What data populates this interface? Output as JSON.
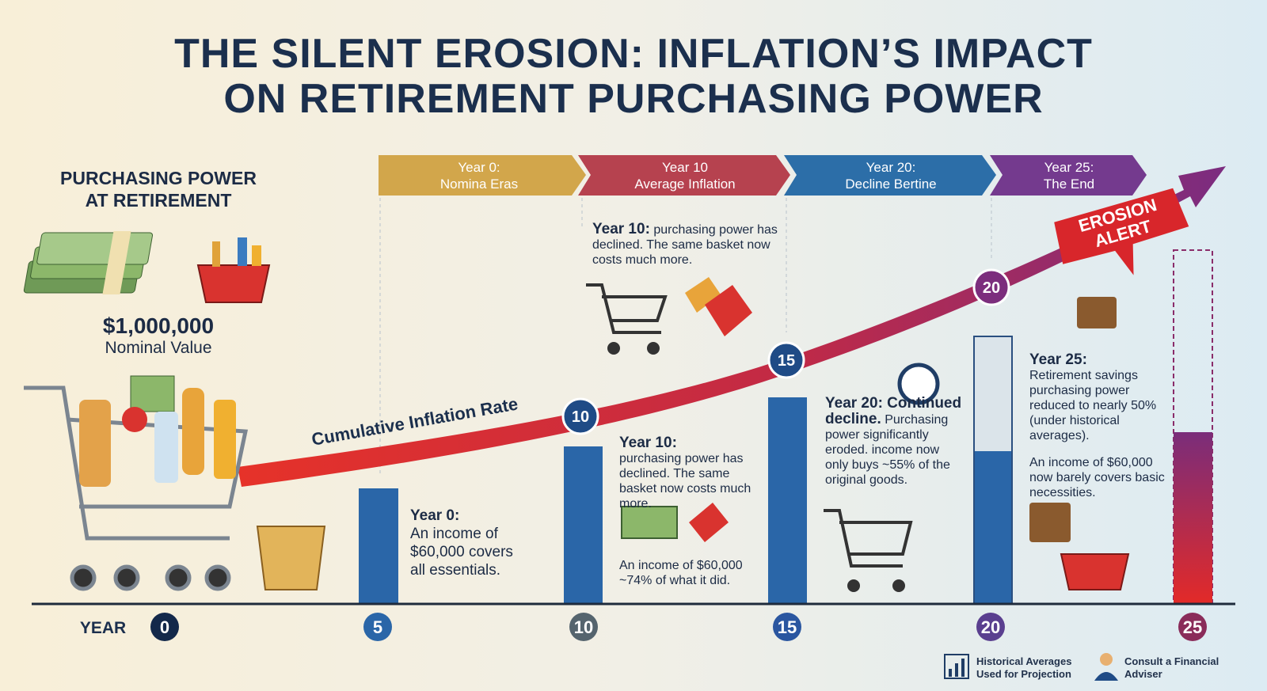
{
  "header": {
    "title_line1": "THE SILENT EROSION: INFLATION’S IMPACT",
    "title_line2": "ON RETIREMENT PURCHASING POWER"
  },
  "left_panel": {
    "heading_line1": "PURCHASING POWER",
    "heading_line2": "AT RETIREMENT",
    "amount": "$1,000,000",
    "amount_label": "Nominal Value"
  },
  "phases": [
    {
      "line1": "Year 0:",
      "line2": "Nomina Eras"
    },
    {
      "line1": "Year 10",
      "line2": "Average Inflation"
    },
    {
      "line1": "Year 20:",
      "line2": "Decline Bertine"
    },
    {
      "line1": "Year 25:",
      "line2": "The End"
    }
  ],
  "curve": {
    "label": "Cumulative Inflation Rate",
    "markers": [
      "10",
      "15",
      "20"
    ],
    "alert_line1": "EROSION",
    "alert_line2": "ALERT"
  },
  "notes": {
    "year10_top": {
      "lead": "Year 10:",
      "text": "purchasing power has declined. The same basket now costs much more."
    },
    "year0": {
      "lead": "Year 0:",
      "text": "An income of $60,000 covers all essentials."
    },
    "year10": {
      "lead": "Year 10:",
      "text": "purchasing power has declined. The same basket now costs much more.",
      "extra": "An income of $60,000 ~74% of what it did."
    },
    "year20": {
      "lead": "Year 20: Continued decline.",
      "text": "Purchasing power significantly eroded. income now only buys ~55% of the original goods."
    },
    "year25": {
      "lead": "Year 25:",
      "text": "Retirement savings purchasing power reduced to nearly 50% (under historical averages).",
      "extra": "An income of $60,000 now barely covers basic necessities."
    }
  },
  "timeline": {
    "label": "YEAR",
    "years": [
      "0",
      "5",
      "10",
      "15",
      "20",
      "25"
    ]
  },
  "footer": {
    "note1": "Historical Averages Used for Projection",
    "note2": "Consult a Financial Adviser"
  }
}
